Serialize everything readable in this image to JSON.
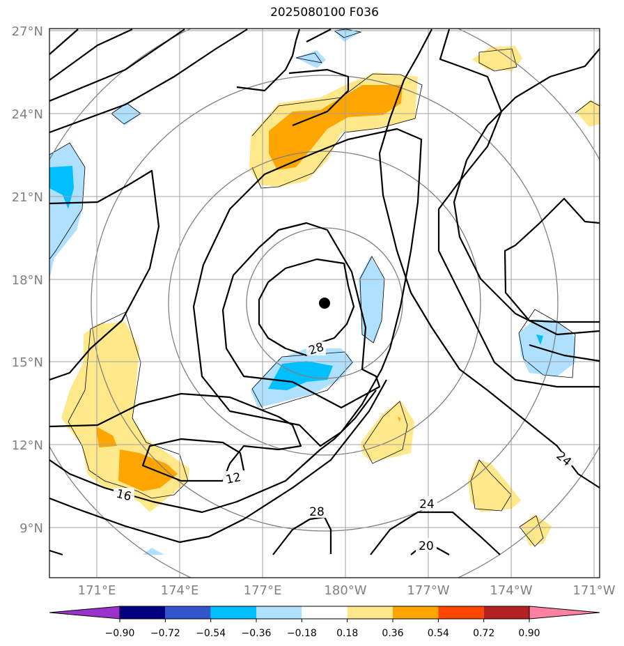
{
  "title": "2025080100 F036",
  "lat_labels": [
    "27°N",
    "24°N",
    "21°N",
    "18°N",
    "15°N",
    "12°N",
    "9°N"
  ],
  "lon_labels": [
    "171°E",
    "174°E",
    "177°E",
    "180°W",
    "177°W",
    "174°W",
    "171°W"
  ],
  "colorbar": {
    "ticks": [
      "−0.90",
      "−0.72",
      "−0.54",
      "−0.36",
      "−0.18",
      "0.18",
      "0.36",
      "0.54",
      "0.72",
      "0.90"
    ],
    "colors": [
      "#9933cc",
      "#9933cc",
      "#000080",
      "#3355cc",
      "#00bfff",
      "#b0e0ff",
      "#ffffff",
      "#ffe88a",
      "#ffa500",
      "#ff4500",
      "#b22222",
      "#ff80a0",
      "#ff80a0"
    ]
  },
  "contour_labels": [
    "28",
    "24",
    "12",
    "16",
    "28",
    "24",
    "20"
  ],
  "center_marker": "storm-center"
}
